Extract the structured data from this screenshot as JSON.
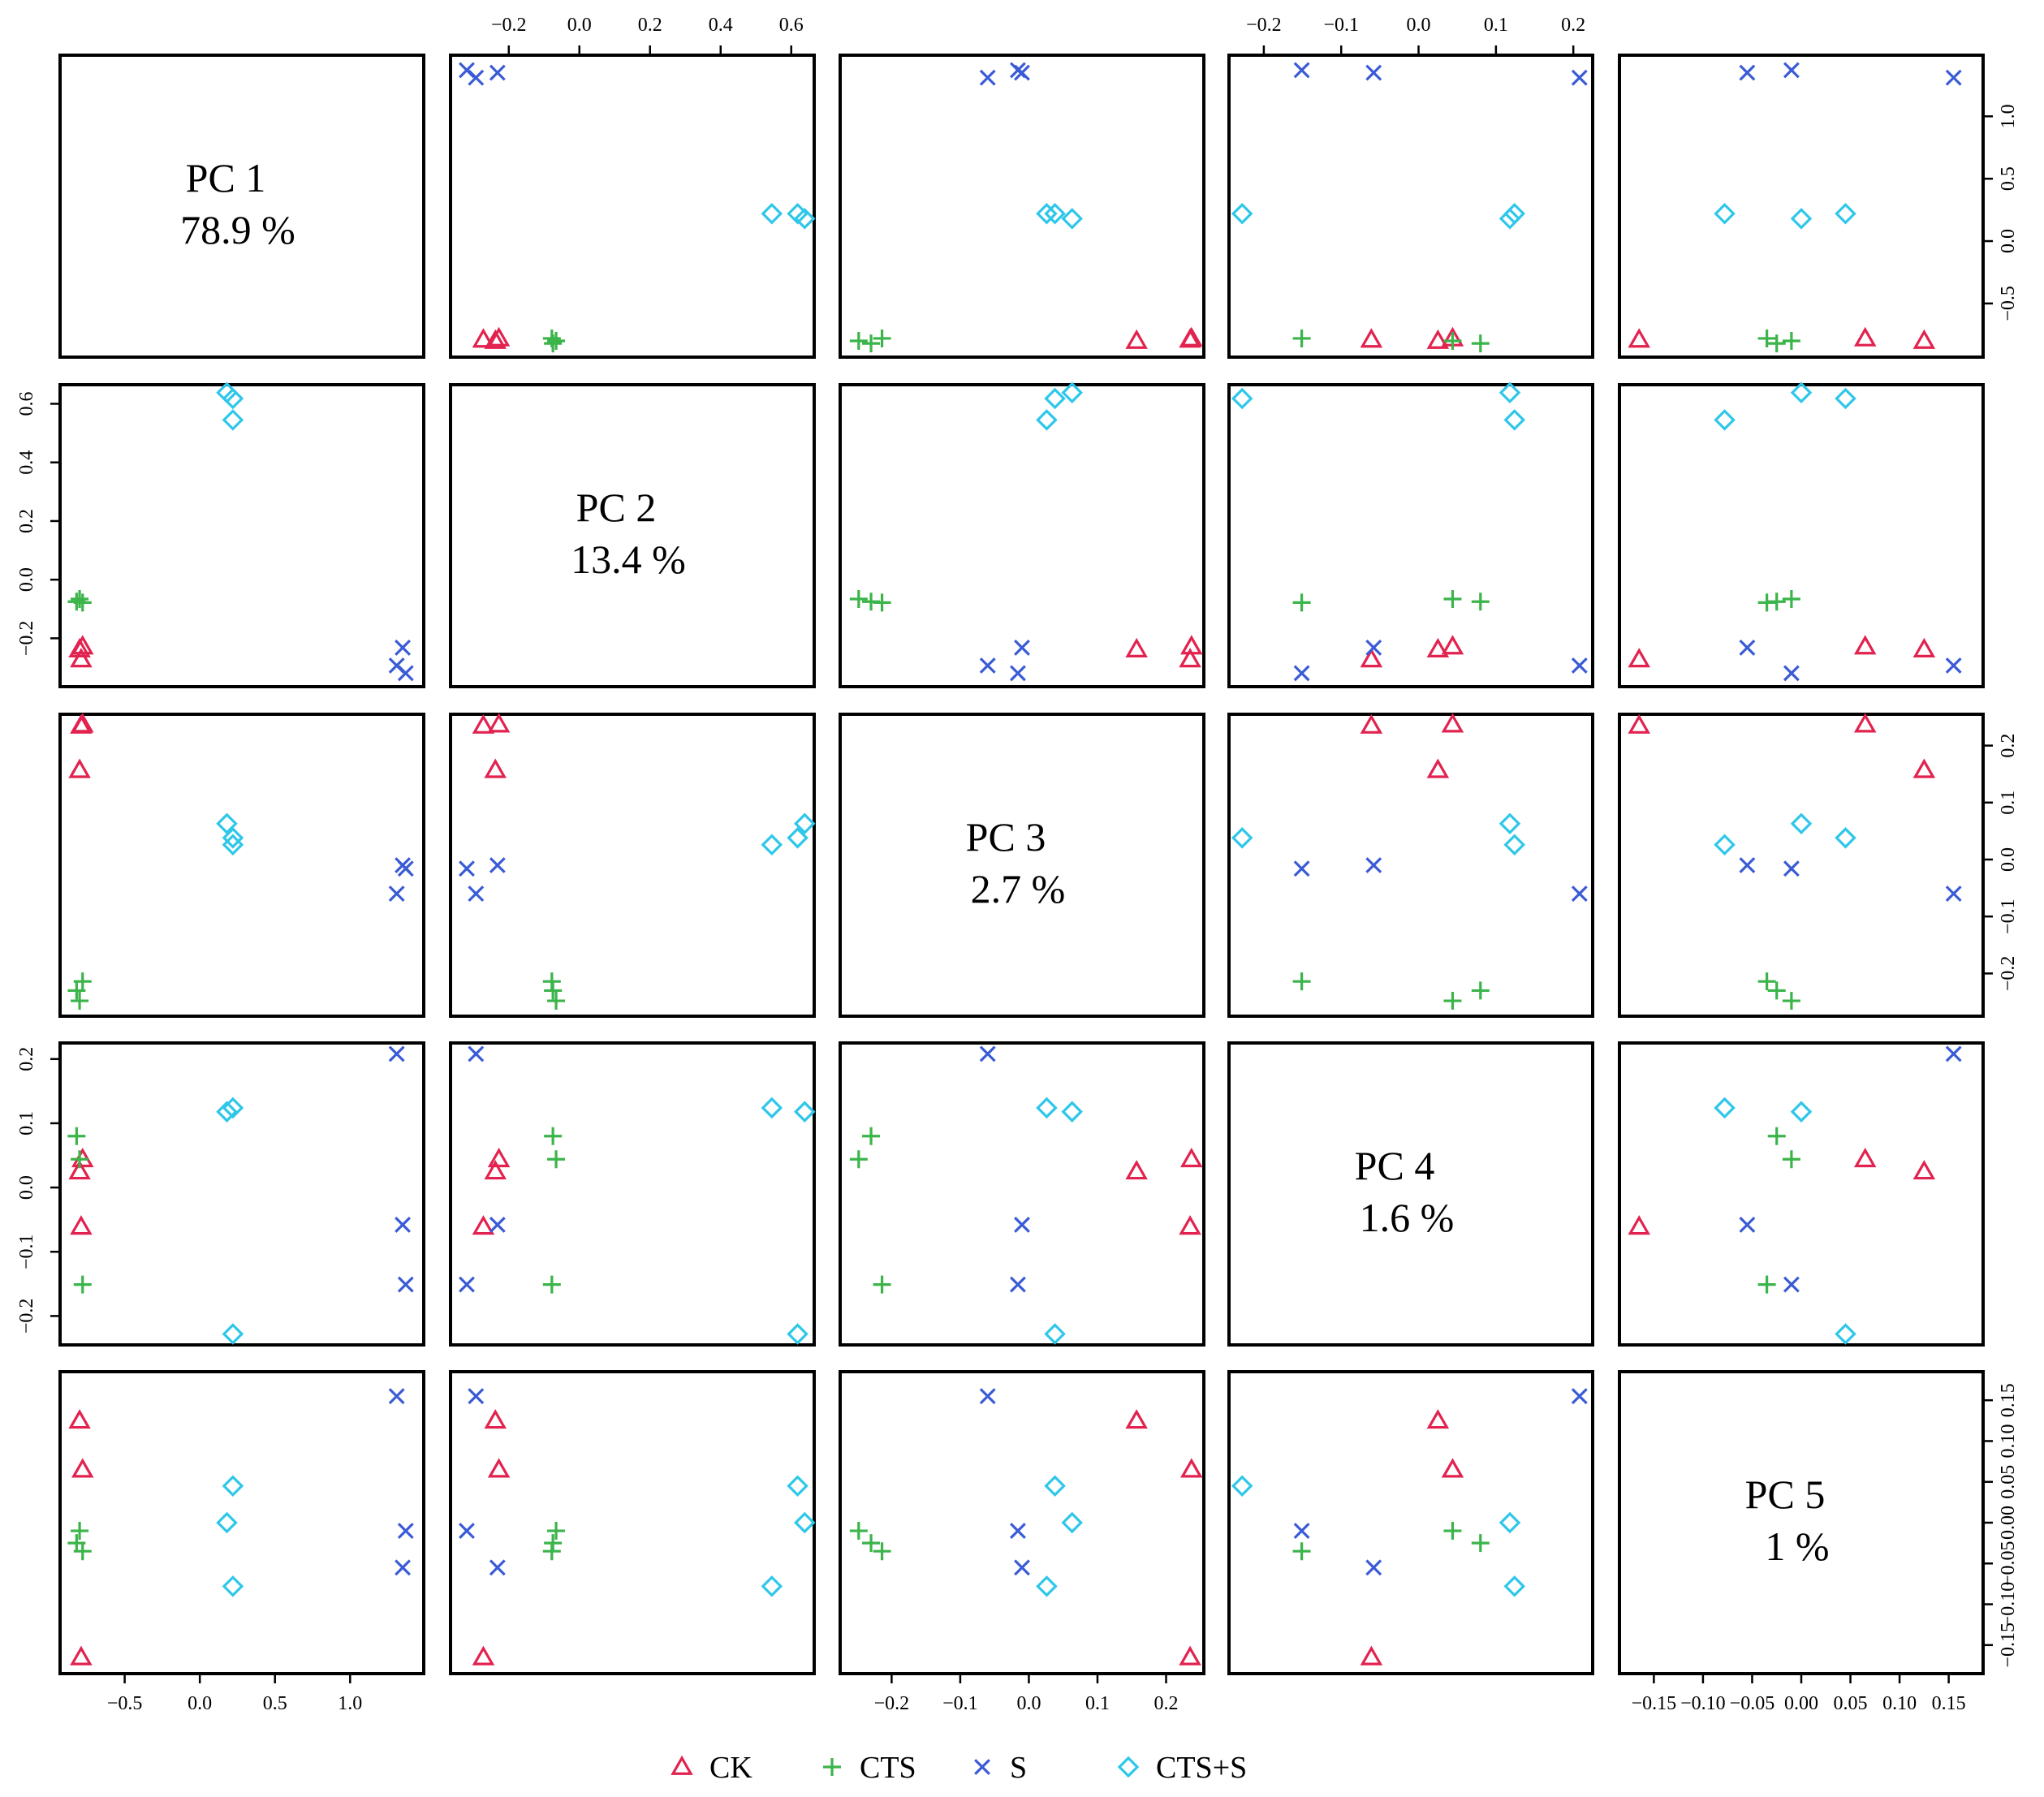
{
  "chart_data": {
    "type": "scatter",
    "title": "",
    "variables": [
      "PC 1",
      "PC 2",
      "PC 3",
      "PC 4",
      "PC 5"
    ],
    "variance_explained": [
      "78.9 %",
      "13.4 %",
      "2.7 %",
      "1.6 %",
      "1 %"
    ],
    "axis_ranges": {
      "PC 1": [
        -0.93,
        1.49
      ],
      "PC 2": [
        -0.365,
        0.665
      ],
      "PC 3": [
        -0.275,
        0.255
      ],
      "PC 4": [
        -0.245,
        0.225
      ],
      "PC 5": [
        -0.185,
        0.185
      ]
    },
    "tick_labels": {
      "PC 1": [
        "-0.5",
        "0.0",
        "0.5",
        "1.0"
      ],
      "PC 2": [
        "-0.2",
        "0.0",
        "0.2",
        "0.4",
        "0.6"
      ],
      "PC 3": [
        "-0.2",
        "-0.1",
        "0.0",
        "0.1",
        "0.2"
      ],
      "PC 4": [
        "-0.2",
        "-0.1",
        "0.0",
        "0.1",
        "0.2"
      ],
      "PC 5": [
        "-0.15",
        "-0.10",
        "-0.05",
        "0.00",
        "0.05",
        "0.10",
        "0.15"
      ]
    },
    "legend_position": "bottom",
    "series": [
      {
        "name": "CK",
        "marker": "triangle",
        "color": "#e2224f",
        "points": [
          {
            "pc1": -0.79,
            "pc2": -0.272,
            "pc3": 0.235,
            "pc4": -0.061,
            "pc5": -0.165
          },
          {
            "pc1": -0.8,
            "pc2": -0.238,
            "pc3": 0.157,
            "pc4": 0.025,
            "pc5": 0.125
          },
          {
            "pc1": -0.78,
            "pc2": -0.228,
            "pc3": 0.237,
            "pc4": 0.044,
            "pc5": 0.065
          }
        ]
      },
      {
        "name": "CTS",
        "marker": "plus",
        "color": "#3bb44a",
        "points": [
          {
            "pc1": -0.82,
            "pc2": -0.075,
            "pc3": -0.23,
            "pc4": 0.08,
            "pc5": -0.025
          },
          {
            "pc1": -0.8,
            "pc2": -0.066,
            "pc3": -0.248,
            "pc4": 0.044,
            "pc5": -0.01
          },
          {
            "pc1": -0.78,
            "pc2": -0.078,
            "pc3": -0.214,
            "pc4": -0.151,
            "pc5": -0.035
          }
        ]
      },
      {
        "name": "S",
        "marker": "cross",
        "color": "#3a5bd6",
        "points": [
          {
            "pc1": 1.35,
            "pc2": -0.232,
            "pc3": -0.01,
            "pc4": -0.058,
            "pc5": -0.055
          },
          {
            "pc1": 1.31,
            "pc2": -0.293,
            "pc3": -0.06,
            "pc4": 0.208,
            "pc5": 0.155
          },
          {
            "pc1": 1.37,
            "pc2": -0.319,
            "pc3": -0.016,
            "pc4": -0.151,
            "pc5": -0.01
          }
        ]
      },
      {
        "name": "CTS+S",
        "marker": "diamond",
        "color": "#2ec7ea",
        "points": [
          {
            "pc1": 0.22,
            "pc2": 0.618,
            "pc3": 0.038,
            "pc4": -0.228,
            "pc5": 0.045
          },
          {
            "pc1": 0.18,
            "pc2": 0.638,
            "pc3": 0.063,
            "pc4": 0.118,
            "pc5": 0.0
          },
          {
            "pc1": 0.22,
            "pc2": 0.545,
            "pc3": 0.026,
            "pc4": 0.124,
            "pc5": -0.078
          }
        ]
      }
    ]
  }
}
